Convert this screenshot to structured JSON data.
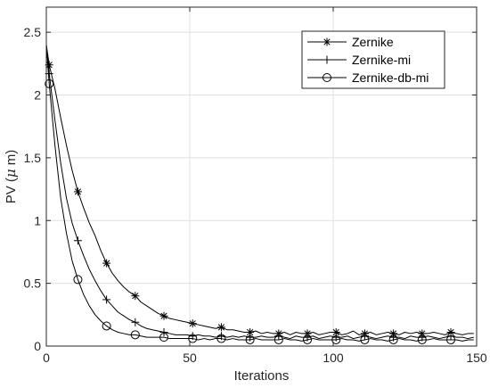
{
  "chart_data": {
    "type": "line",
    "title": "",
    "xlabel": "Iterations",
    "ylabel_prefix": "PV (",
    "ylabel_mu": "μ",
    "ylabel_suffix": " m)",
    "xlim": [
      0,
      150
    ],
    "ylim": [
      0,
      2.7
    ],
    "xticks": [
      0,
      50,
      100,
      150
    ],
    "yticks": [
      0,
      0.5,
      1,
      1.5,
      2,
      2.5
    ],
    "xtick_labels": [
      "0",
      "50",
      "100",
      "150"
    ],
    "ytick_labels": [
      "0",
      "0.5",
      "1",
      "1.5",
      "2",
      "2.5"
    ],
    "grid": true,
    "legend_position": "top-right",
    "series": [
      {
        "name": "Zernike",
        "marker": "asterisk",
        "x": [
          0,
          1,
          3,
          5,
          7,
          9,
          11,
          13,
          15,
          17,
          19,
          21,
          23,
          25,
          27,
          29,
          31,
          33,
          35,
          37,
          39,
          41,
          43,
          45,
          47,
          49,
          51,
          53,
          55,
          57,
          59,
          61,
          63,
          65,
          67,
          69,
          71,
          73,
          75,
          77,
          79,
          81,
          83,
          85,
          87,
          89,
          91,
          93,
          95,
          97,
          99,
          101,
          103,
          105,
          107,
          109,
          111,
          113,
          115,
          117,
          119,
          121,
          123,
          125,
          127,
          129,
          131,
          133,
          135,
          137,
          139,
          141,
          143,
          145,
          147,
          149
        ],
        "y": [
          2.4,
          2.24,
          2.05,
          1.82,
          1.6,
          1.4,
          1.23,
          1.1,
          0.98,
          0.88,
          0.76,
          0.66,
          0.58,
          0.52,
          0.47,
          0.43,
          0.4,
          0.35,
          0.32,
          0.29,
          0.26,
          0.24,
          0.22,
          0.21,
          0.2,
          0.19,
          0.18,
          0.17,
          0.16,
          0.15,
          0.14,
          0.15,
          0.13,
          0.13,
          0.12,
          0.11,
          0.11,
          0.12,
          0.1,
          0.11,
          0.1,
          0.1,
          0.11,
          0.09,
          0.11,
          0.1,
          0.1,
          0.11,
          0.09,
          0.1,
          0.11,
          0.11,
          0.09,
          0.1,
          0.12,
          0.09,
          0.1,
          0.11,
          0.09,
          0.1,
          0.11,
          0.1,
          0.09,
          0.11,
          0.1,
          0.11,
          0.1,
          0.1,
          0.11,
          0.1,
          0.09,
          0.11,
          0.1,
          0.09,
          0.1,
          0.1
        ],
        "marker_x": [
          1,
          11,
          21,
          31,
          41,
          51,
          61,
          71,
          81,
          91,
          101,
          111,
          121,
          131,
          141
        ],
        "marker_y": [
          2.24,
          1.23,
          0.66,
          0.4,
          0.24,
          0.18,
          0.15,
          0.11,
          0.1,
          0.1,
          0.11,
          0.1,
          0.1,
          0.1,
          0.11
        ]
      },
      {
        "name": "Zernike-mi",
        "marker": "plus",
        "x": [
          0,
          1,
          3,
          5,
          7,
          9,
          11,
          13,
          15,
          17,
          19,
          21,
          23,
          25,
          27,
          29,
          31,
          33,
          35,
          37,
          39,
          41,
          43,
          45,
          47,
          49,
          51,
          53,
          55,
          57,
          59,
          61,
          63,
          65,
          67,
          69,
          71,
          73,
          75,
          77,
          79,
          81,
          83,
          85,
          87,
          89,
          91,
          93,
          95,
          97,
          99,
          101,
          103,
          105,
          107,
          109,
          111,
          113,
          115,
          117,
          119,
          121,
          123,
          125,
          127,
          129,
          131,
          133,
          135,
          137,
          139,
          141,
          143,
          145,
          147,
          149
        ],
        "y": [
          2.4,
          2.17,
          1.8,
          1.46,
          1.18,
          0.98,
          0.84,
          0.72,
          0.61,
          0.52,
          0.44,
          0.37,
          0.32,
          0.27,
          0.24,
          0.21,
          0.19,
          0.16,
          0.14,
          0.13,
          0.12,
          0.11,
          0.1,
          0.09,
          0.09,
          0.09,
          0.08,
          0.09,
          0.08,
          0.08,
          0.07,
          0.08,
          0.07,
          0.08,
          0.07,
          0.08,
          0.07,
          0.07,
          0.08,
          0.07,
          0.07,
          0.08,
          0.07,
          0.06,
          0.08,
          0.07,
          0.07,
          0.08,
          0.06,
          0.07,
          0.08,
          0.07,
          0.07,
          0.08,
          0.06,
          0.07,
          0.08,
          0.07,
          0.06,
          0.07,
          0.08,
          0.07,
          0.07,
          0.06,
          0.08,
          0.07,
          0.07,
          0.08,
          0.07,
          0.06,
          0.07,
          0.08,
          0.07,
          0.07,
          0.06,
          0.07
        ],
        "marker_x": [
          1,
          11,
          21,
          31,
          41,
          51,
          61,
          71,
          81,
          91,
          101,
          111,
          121,
          131,
          141
        ],
        "marker_y": [
          2.17,
          0.84,
          0.37,
          0.19,
          0.11,
          0.08,
          0.08,
          0.07,
          0.08,
          0.07,
          0.07,
          0.08,
          0.07,
          0.07,
          0.08
        ]
      },
      {
        "name": "Zernike-db-mi",
        "marker": "circle",
        "x": [
          0,
          1,
          3,
          5,
          7,
          9,
          11,
          13,
          15,
          17,
          19,
          21,
          23,
          25,
          27,
          29,
          31,
          33,
          35,
          37,
          39,
          41,
          43,
          45,
          47,
          49,
          51,
          53,
          55,
          57,
          59,
          61,
          63,
          65,
          67,
          69,
          71,
          73,
          75,
          77,
          79,
          81,
          83,
          85,
          87,
          89,
          91,
          93,
          95,
          97,
          99,
          101,
          103,
          105,
          107,
          109,
          111,
          113,
          115,
          117,
          119,
          121,
          123,
          125,
          127,
          129,
          131,
          133,
          135,
          137,
          139,
          141,
          143,
          145,
          147,
          149
        ],
        "y": [
          2.4,
          2.09,
          1.6,
          1.18,
          0.9,
          0.68,
          0.53,
          0.41,
          0.32,
          0.25,
          0.2,
          0.16,
          0.13,
          0.11,
          0.1,
          0.09,
          0.09,
          0.08,
          0.07,
          0.07,
          0.07,
          0.07,
          0.06,
          0.06,
          0.06,
          0.06,
          0.06,
          0.05,
          0.06,
          0.05,
          0.06,
          0.06,
          0.05,
          0.06,
          0.05,
          0.05,
          0.05,
          0.06,
          0.05,
          0.05,
          0.05,
          0.05,
          0.06,
          0.05,
          0.05,
          0.04,
          0.05,
          0.06,
          0.05,
          0.05,
          0.05,
          0.05,
          0.06,
          0.05,
          0.05,
          0.04,
          0.05,
          0.06,
          0.05,
          0.05,
          0.04,
          0.05,
          0.06,
          0.05,
          0.05,
          0.04,
          0.05,
          0.05,
          0.06,
          0.05,
          0.05,
          0.05,
          0.05,
          0.04,
          0.05,
          0.05
        ],
        "marker_x": [
          1,
          11,
          21,
          31,
          41,
          51,
          61,
          71,
          81,
          91,
          101,
          111,
          121,
          131,
          141
        ],
        "marker_y": [
          2.09,
          0.53,
          0.16,
          0.09,
          0.07,
          0.06,
          0.06,
          0.05,
          0.05,
          0.05,
          0.05,
          0.05,
          0.05,
          0.05,
          0.05
        ]
      }
    ]
  },
  "colors": {
    "line": "#000000",
    "axis": "#262626",
    "grid": "#dfdfdf",
    "background": "#ffffff"
  }
}
